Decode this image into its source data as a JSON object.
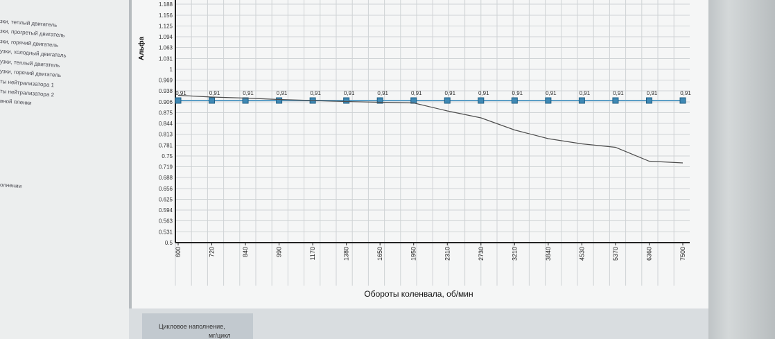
{
  "legend": {
    "items": [
      "зки, теплый двигатель",
      "зки, прогретый двигатель",
      "зки, горячий двигатель",
      "узки, холодный двигатель",
      "узки, теплый двигатель",
      "узки, горячий двигатель",
      "ты нейтрализатора 1",
      "ты нейтрализатора 2",
      "вной пленки"
    ],
    "note": "олнении"
  },
  "bottom_table": {
    "line1": "Цикловое наполнение,",
    "line2": "мг/цикл"
  },
  "chart_data": {
    "type": "line",
    "xlabel": "Обороты коленвала, об/мин",
    "ylabel": "Альфа",
    "categories": [
      "600",
      "720",
      "840",
      "990",
      "1170",
      "1380",
      "1650",
      "1950",
      "2310",
      "2730",
      "3210",
      "3840",
      "4530",
      "5370",
      "6360",
      "7500"
    ],
    "ylim": [
      0.5,
      1.2
    ],
    "y_ticks": [
      "0.5",
      "0.531",
      "0.563",
      "0.594",
      "0.625",
      "0.656",
      "0.688",
      "0.719",
      "0.75",
      "0.781",
      "0.813",
      "0.844",
      "0.875",
      "0.906",
      "0.938",
      "0.969",
      "1",
      "1.031",
      "1.063",
      "1.094",
      "1.125",
      "1.156",
      "1.188"
    ],
    "series": [
      {
        "values": [
          0.91,
          0.91,
          0.91,
          0.91,
          0.91,
          0.91,
          0.91,
          0.91,
          0.91,
          0.91,
          0.91,
          0.91,
          0.91,
          0.91,
          0.91,
          0.91
        ],
        "point_labels": [
          "0,91",
          "0,91",
          "0,91",
          "0,91",
          "0,91",
          "0,91",
          "0,91",
          "0,91",
          "0,91",
          "0,91",
          "0,91",
          "0,91",
          "0,91",
          "0,91",
          "0,91",
          "0,91"
        ],
        "color": "#5d9fc6",
        "markers": true
      },
      {
        "values": [
          0.925,
          0.92,
          0.917,
          0.913,
          0.91,
          0.907,
          0.905,
          0.903,
          0.88,
          0.86,
          0.825,
          0.8,
          0.785,
          0.775,
          0.735,
          0.73
        ],
        "color": "#4d4d4d",
        "markers": false
      }
    ],
    "grid": true,
    "colors": {
      "background": "#f5f6f6",
      "grid": "#cfd3d5",
      "axis": "#222222"
    }
  }
}
